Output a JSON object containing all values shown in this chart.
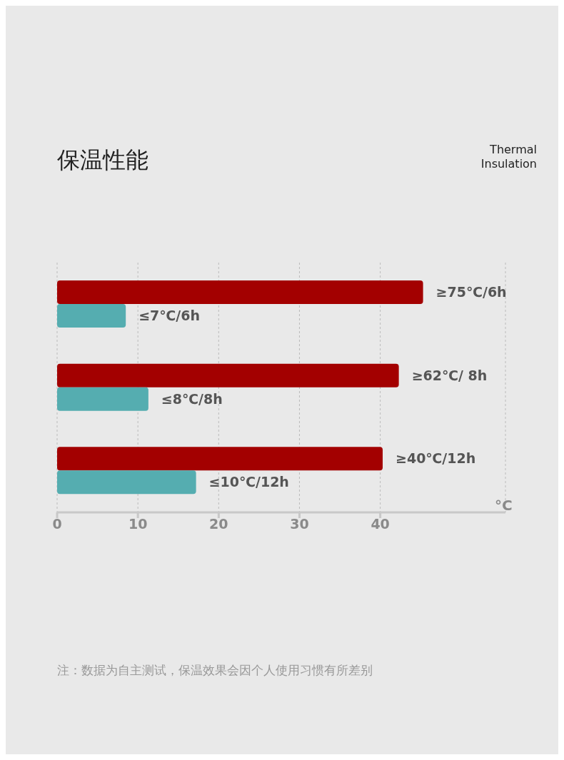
{
  "chart_data": {
    "type": "bar",
    "orientation": "horizontal",
    "title": "保温性能",
    "subtitle": "Thermal Insulation",
    "xlabel": "°C",
    "categories": [
      null,
      null,
      null
    ],
    "series": [
      {
        "color": "#a30000",
        "values": [
          45.3,
          42.3,
          40.3
        ],
        "value_labels": [
          "≥75℃/6h",
          "≥62℃/ 8h",
          "≥40℃/12h"
        ]
      },
      {
        "color": "#55adb0",
        "values": [
          8.5,
          11.3,
          17.2
        ],
        "value_labels": [
          "≤7℃/6h",
          "≤8℃/8h",
          "≤10℃/12h"
        ]
      }
    ],
    "xlim": [
      0,
      55.5
    ],
    "xticks": [
      0,
      10,
      20,
      30,
      40
    ],
    "grid": "x",
    "legend": false,
    "annotations": [
      "注：数据为自主测试，保温效果会因个人使用习惯有所差别"
    ]
  }
}
